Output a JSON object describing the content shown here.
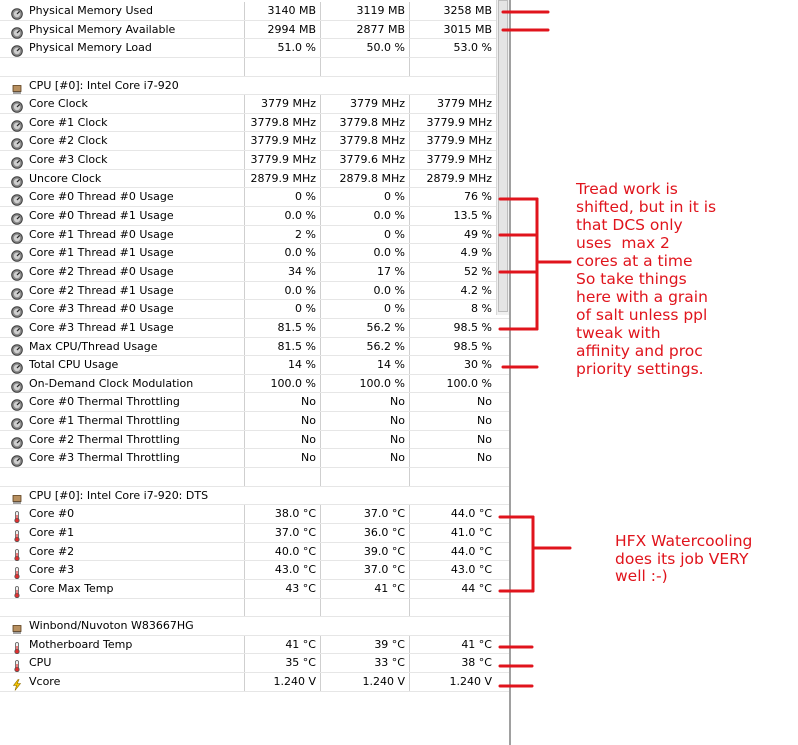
{
  "rows": [
    {
      "type": "data",
      "icon": "gauge",
      "label": "Physical Memory Used",
      "cur": "3140 MB",
      "min": "3119 MB",
      "max": "3258 MB"
    },
    {
      "type": "data",
      "icon": "gauge",
      "label": "Physical Memory Available",
      "cur": "2994 MB",
      "min": "2877 MB",
      "max": "3015 MB"
    },
    {
      "type": "data",
      "icon": "gauge",
      "label": "Physical Memory Load",
      "cur": "51.0 %",
      "min": "50.0 %",
      "max": "53.0 %"
    },
    {
      "type": "blank"
    },
    {
      "type": "header",
      "icon": "chip",
      "label": "CPU [#0]: Intel Core i7-920"
    },
    {
      "type": "data",
      "icon": "gauge",
      "label": "Core Clock",
      "cur": "3779 MHz",
      "min": "3779 MHz",
      "max": "3779 MHz"
    },
    {
      "type": "data",
      "icon": "gauge",
      "label": "Core #1 Clock",
      "cur": "3779.8 MHz",
      "min": "3779.8 MHz",
      "max": "3779.9 MHz"
    },
    {
      "type": "data",
      "icon": "gauge",
      "label": "Core #2 Clock",
      "cur": "3779.9 MHz",
      "min": "3779.8 MHz",
      "max": "3779.9 MHz"
    },
    {
      "type": "data",
      "icon": "gauge",
      "label": "Core #3 Clock",
      "cur": "3779.9 MHz",
      "min": "3779.6 MHz",
      "max": "3779.9 MHz"
    },
    {
      "type": "data",
      "icon": "gauge",
      "label": "Uncore Clock",
      "cur": "2879.9 MHz",
      "min": "2879.8 MHz",
      "max": "2879.9 MHz"
    },
    {
      "type": "data",
      "icon": "gauge",
      "label": "Core #0 Thread #0 Usage",
      "cur": "0 %",
      "min": "0 %",
      "max": "76 %"
    },
    {
      "type": "data",
      "icon": "gauge",
      "label": "Core #0 Thread #1 Usage",
      "cur": "0.0 %",
      "min": "0.0 %",
      "max": "13.5 %"
    },
    {
      "type": "data",
      "icon": "gauge",
      "label": "Core #1 Thread #0 Usage",
      "cur": "2 %",
      "min": "0 %",
      "max": "49 %"
    },
    {
      "type": "data",
      "icon": "gauge",
      "label": "Core #1 Thread #1 Usage",
      "cur": "0.0 %",
      "min": "0.0 %",
      "max": "4.9 %"
    },
    {
      "type": "data",
      "icon": "gauge",
      "label": "Core #2 Thread #0 Usage",
      "cur": "34 %",
      "min": "17 %",
      "max": "52 %"
    },
    {
      "type": "data",
      "icon": "gauge",
      "label": "Core #2 Thread #1 Usage",
      "cur": "0.0 %",
      "min": "0.0 %",
      "max": "4.2 %"
    },
    {
      "type": "data",
      "icon": "gauge",
      "label": "Core #3 Thread #0 Usage",
      "cur": "0 %",
      "min": "0 %",
      "max": "8 %"
    },
    {
      "type": "data",
      "icon": "gauge",
      "label": "Core #3 Thread #1 Usage",
      "cur": "81.5 %",
      "min": "56.2 %",
      "max": "98.5 %"
    },
    {
      "type": "data",
      "icon": "gauge",
      "label": "Max CPU/Thread Usage",
      "cur": "81.5 %",
      "min": "56.2 %",
      "max": "98.5 %"
    },
    {
      "type": "data",
      "icon": "gauge",
      "label": "Total CPU Usage",
      "cur": "14 %",
      "min": "14 %",
      "max": "30 %"
    },
    {
      "type": "data",
      "icon": "gauge",
      "label": "On-Demand Clock Modulation",
      "cur": "100.0 %",
      "min": "100.0 %",
      "max": "100.0 %"
    },
    {
      "type": "data",
      "icon": "gauge",
      "label": "Core #0 Thermal Throttling",
      "cur": "No",
      "min": "No",
      "max": "No"
    },
    {
      "type": "data",
      "icon": "gauge",
      "label": "Core #1 Thermal Throttling",
      "cur": "No",
      "min": "No",
      "max": "No"
    },
    {
      "type": "data",
      "icon": "gauge",
      "label": "Core #2 Thermal Throttling",
      "cur": "No",
      "min": "No",
      "max": "No"
    },
    {
      "type": "data",
      "icon": "gauge",
      "label": "Core #3 Thermal Throttling",
      "cur": "No",
      "min": "No",
      "max": "No"
    },
    {
      "type": "blank"
    },
    {
      "type": "header",
      "icon": "chip",
      "label": "CPU [#0]: Intel Core i7-920: DTS"
    },
    {
      "type": "data",
      "icon": "thermometer",
      "label": "Core #0",
      "cur": "38.0 °C",
      "min": "37.0 °C",
      "max": "44.0 °C"
    },
    {
      "type": "data",
      "icon": "thermometer",
      "label": "Core #1",
      "cur": "37.0 °C",
      "min": "36.0 °C",
      "max": "41.0 °C"
    },
    {
      "type": "data",
      "icon": "thermometer",
      "label": "Core #2",
      "cur": "40.0 °C",
      "min": "39.0 °C",
      "max": "44.0 °C"
    },
    {
      "type": "data",
      "icon": "thermometer",
      "label": "Core #3",
      "cur": "43.0 °C",
      "min": "37.0 °C",
      "max": "43.0 °C"
    },
    {
      "type": "data",
      "icon": "thermometer",
      "label": "Core Max Temp",
      "cur": "43 °C",
      "min": "41 °C",
      "max": "44 °C"
    },
    {
      "type": "blank"
    },
    {
      "type": "header",
      "icon": "chip",
      "label": "Winbond/Nuvoton W83667HG"
    },
    {
      "type": "data",
      "icon": "thermometer",
      "label": "Motherboard Temp",
      "cur": "41 °C",
      "min": "39 °C",
      "max": "41 °C"
    },
    {
      "type": "data",
      "icon": "thermometer",
      "label": "CPU",
      "cur": "35 °C",
      "min": "33 °C",
      "max": "38 °C"
    },
    {
      "type": "data",
      "icon": "bolt",
      "label": "Vcore",
      "cur": "1.240 V",
      "min": "1.240 V",
      "max": "1.240 V"
    }
  ],
  "annotations": {
    "note_threads": "Tread work is\nshifted, but in it is\nthat DCS only\nuses  max 2\ncores at a time\nSo take things\nhere with a grain\nof salt unless ppl\ntweak with\naffinity and proc\npriority settings.",
    "note_cooling": "HFX Watercooling\ndoes its job VERY\nwell :-)",
    "color": "#e0141c"
  }
}
